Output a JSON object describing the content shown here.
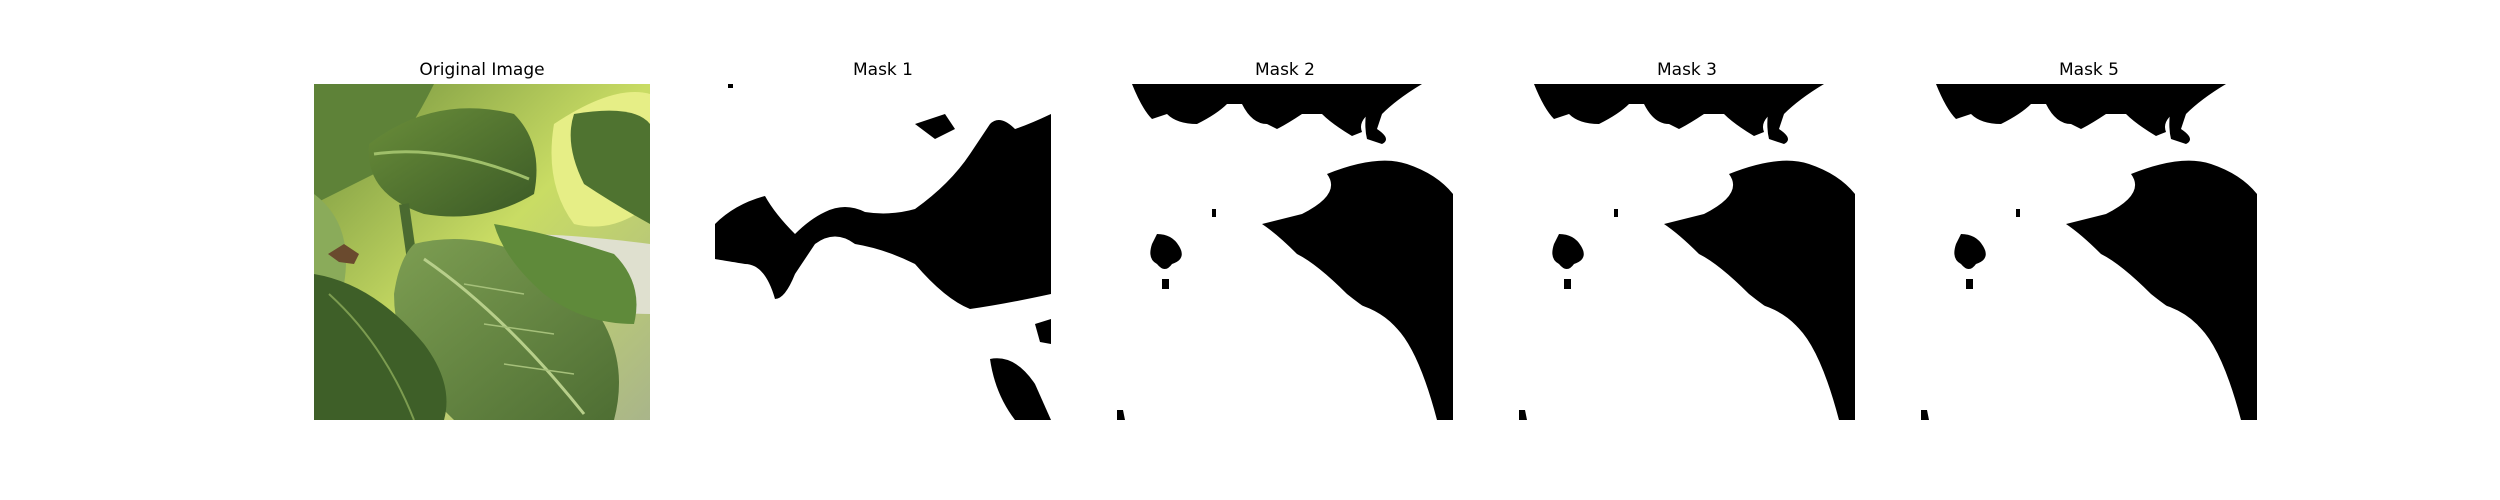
{
  "panels": [
    {
      "title": "Original Image",
      "kind": "photo"
    },
    {
      "title": "Mask 1",
      "kind": "mask"
    },
    {
      "title": "Mask 2",
      "kind": "mask"
    },
    {
      "title": "Mask 3",
      "kind": "mask"
    },
    {
      "title": "Mask 5",
      "kind": "mask"
    }
  ],
  "colors": {
    "mask_fg": "#000000",
    "mask_bg": "#ffffff",
    "leaf_dark": "#3f5e2a",
    "leaf_light": "#8fb063",
    "highlight": "#e4ef7a"
  }
}
